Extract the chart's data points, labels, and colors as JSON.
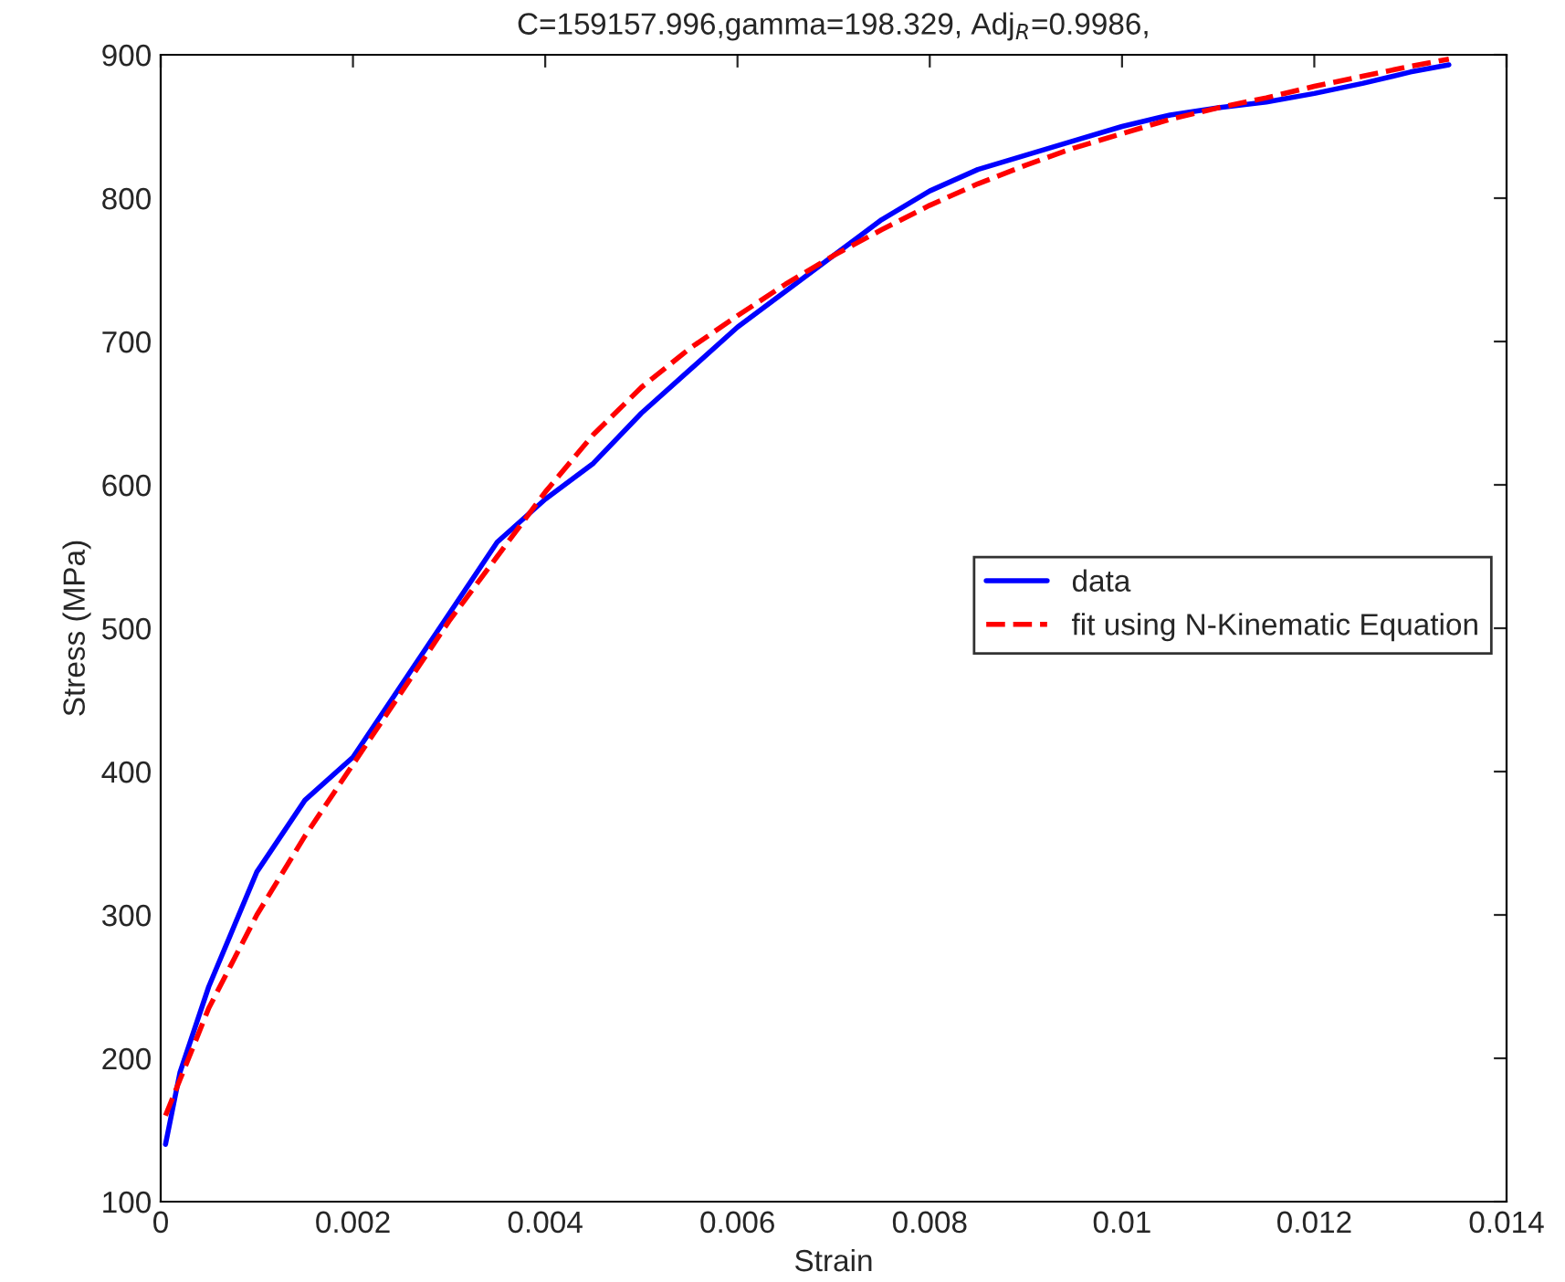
{
  "chart_data": {
    "type": "line",
    "title": "C=159157.996,gamma=198.329, Adj$_{R}$=0.9986,",
    "xlabel": "Strain",
    "ylabel": "Stress (MPa)",
    "xlim": [
      0,
      0.014
    ],
    "xticks": [
      0,
      0.002,
      0.004,
      0.006,
      0.008,
      {
        "value": 0.01,
        "label": "0.01"
      },
      0.012,
      0.014
    ],
    "ylim": [
      100,
      900
    ],
    "yticks": [
      100,
      200,
      300,
      400,
      500,
      600,
      700,
      800,
      900
    ],
    "grid": false,
    "legend": "right",
    "series": [
      {
        "name": "data",
        "color": "#0000ff",
        "line_style": "solid",
        "x": [
          5e-05,
          0.0002,
          0.0005,
          0.001,
          0.0015,
          0.002,
          0.0025,
          0.003,
          0.0035,
          0.004,
          0.0045,
          0.005,
          0.0055,
          0.006,
          0.0065,
          0.007,
          0.0075,
          0.008,
          0.0085,
          0.009,
          0.0095,
          0.01,
          0.0105,
          0.011,
          0.0115,
          0.012,
          0.0125,
          0.013,
          0.0134
        ],
        "values": [
          140,
          190,
          250,
          330,
          380,
          410,
          460,
          510,
          560,
          590,
          615,
          650,
          680,
          710,
          735,
          760,
          785,
          805,
          820,
          830,
          840,
          850,
          858,
          863,
          867,
          873,
          880,
          888,
          893
        ]
      },
      {
        "name": "fit using N-Kinematic Equation",
        "color": "#ff0000",
        "line_style": "dashed",
        "x": [
          5e-05,
          0.0002,
          0.0005,
          0.001,
          0.0015,
          0.002,
          0.0025,
          0.003,
          0.0035,
          0.004,
          0.0045,
          0.005,
          0.0055,
          0.006,
          0.0065,
          0.007,
          0.0075,
          0.008,
          0.0085,
          0.009,
          0.0095,
          0.01,
          0.0105,
          0.011,
          0.0115,
          0.012,
          0.0125,
          0.013,
          0.0134
        ],
        "values": [
          160,
          185,
          235,
          300,
          355,
          405,
          455,
          505,
          550,
          595,
          635,
          668,
          695,
          718,
          740,
          760,
          778,
          795,
          810,
          823,
          835,
          845,
          855,
          863,
          870,
          878,
          885,
          892,
          897
        ]
      }
    ]
  }
}
